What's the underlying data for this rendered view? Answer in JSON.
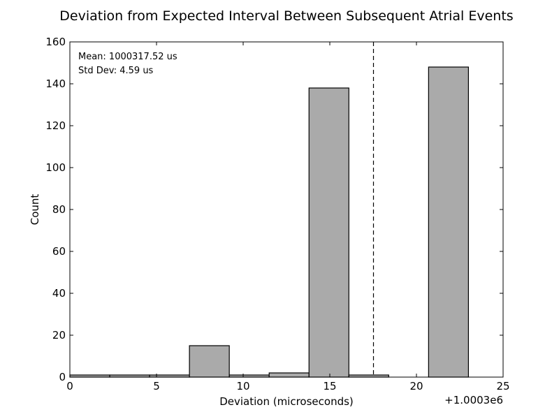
{
  "chart_data": {
    "type": "bar",
    "title": "Deviation from Expected Interval Between Subsequent Atrial Events",
    "xlabel": "Deviation (microseconds)",
    "ylabel": "Count",
    "x_offset_label": "+1.0003e6",
    "xlim": [
      0,
      25
    ],
    "ylim": [
      0,
      160
    ],
    "x_ticks": [
      0,
      5,
      10,
      15,
      20,
      25
    ],
    "y_ticks": [
      0,
      20,
      40,
      60,
      80,
      100,
      120,
      140,
      160
    ],
    "bins": [
      {
        "x0": 0.0,
        "x1": 2.3,
        "count": 1
      },
      {
        "x0": 2.3,
        "x1": 4.6,
        "count": 1
      },
      {
        "x0": 4.6,
        "x1": 6.9,
        "count": 1
      },
      {
        "x0": 6.9,
        "x1": 9.2,
        "count": 15
      },
      {
        "x0": 9.2,
        "x1": 11.5,
        "count": 1
      },
      {
        "x0": 11.5,
        "x1": 13.8,
        "count": 2
      },
      {
        "x0": 13.8,
        "x1": 16.1,
        "count": 138
      },
      {
        "x0": 16.1,
        "x1": 18.4,
        "count": 1
      },
      {
        "x0": 18.4,
        "x1": 20.7,
        "count": 0
      },
      {
        "x0": 20.7,
        "x1": 23.0,
        "count": 148
      }
    ],
    "mean_line_x": 17.52,
    "annotations": [
      "Mean: 1000317.52 us",
      "Std Dev: 4.59 us"
    ],
    "bar_color": "#aaaaaa",
    "edge_color": "#000000",
    "grid": false,
    "legend": "none"
  }
}
